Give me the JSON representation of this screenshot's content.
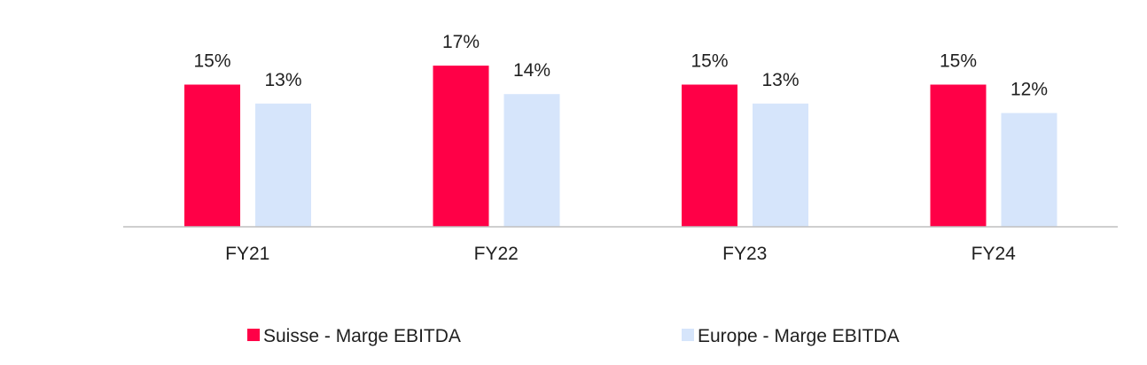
{
  "chart_data": {
    "type": "bar",
    "categories": [
      "FY21",
      "FY22",
      "FY23",
      "FY24"
    ],
    "series": [
      {
        "name": "Suisse - Marge EBITDA",
        "values": [
          15,
          17,
          15,
          15
        ],
        "labels": [
          "15%",
          "17%",
          "15%",
          "15%"
        ],
        "color": "#ff0047"
      },
      {
        "name": "Europe - Marge EBITDA",
        "values": [
          13,
          14,
          13,
          12
        ],
        "labels": [
          "13%",
          "14%",
          "13%",
          "12%"
        ],
        "color": "#d6e5fb"
      }
    ],
    "ylim": [
      0,
      20
    ],
    "grid": false,
    "legend_position": "bottom",
    "axis_color": "#bfbfbf"
  }
}
